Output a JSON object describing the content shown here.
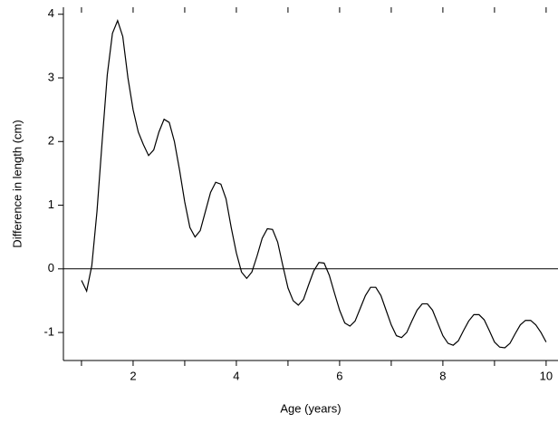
{
  "chart_data": {
    "type": "line",
    "xlabel": "Age (years)",
    "ylabel": "Difference in length (cm)",
    "xlim": [
      0.65,
      10.23
    ],
    "ylim": [
      -1.44,
      4.11
    ],
    "xticks": [
      2,
      4,
      6,
      8,
      10
    ],
    "xminor_ticks": [
      1,
      3,
      5,
      7,
      9
    ],
    "yticks": [
      -1,
      0,
      1,
      2,
      3,
      4
    ],
    "reference_line": 0,
    "x": [
      1.0,
      1.1,
      1.2,
      1.3,
      1.4,
      1.5,
      1.6,
      1.7,
      1.8,
      1.9,
      2.0,
      2.1,
      2.2,
      2.3,
      2.4,
      2.5,
      2.6,
      2.7,
      2.8,
      2.9,
      3.0,
      3.1,
      3.2,
      3.3,
      3.4,
      3.5,
      3.6,
      3.7,
      3.8,
      3.9,
      4.0,
      4.1,
      4.2,
      4.3,
      4.4,
      4.5,
      4.6,
      4.7,
      4.8,
      4.9,
      5.0,
      5.1,
      5.2,
      5.3,
      5.4,
      5.5,
      5.6,
      5.7,
      5.8,
      5.9,
      6.0,
      6.1,
      6.2,
      6.3,
      6.4,
      6.5,
      6.6,
      6.7,
      6.8,
      6.9,
      7.0,
      7.1,
      7.2,
      7.3,
      7.4,
      7.5,
      7.6,
      7.7,
      7.8,
      7.9,
      8.0,
      8.1,
      8.2,
      8.3,
      8.4,
      8.5,
      8.6,
      8.7,
      8.8,
      8.9,
      9.0,
      9.1,
      9.2,
      9.3,
      9.4,
      9.5,
      9.6,
      9.7,
      9.8,
      9.9,
      10.0
    ],
    "series": [
      {
        "color": "#000000",
        "values": [
          -0.18,
          -0.35,
          0.05,
          0.9,
          2.0,
          3.05,
          3.7,
          3.9,
          3.65,
          3.0,
          2.5,
          2.15,
          1.95,
          1.78,
          1.87,
          2.15,
          2.35,
          2.3,
          2.0,
          1.55,
          1.05,
          0.65,
          0.5,
          0.6,
          0.9,
          1.2,
          1.36,
          1.33,
          1.1,
          0.65,
          0.25,
          -0.05,
          -0.15,
          -0.05,
          0.2,
          0.48,
          0.63,
          0.62,
          0.42,
          0.05,
          -0.3,
          -0.5,
          -0.57,
          -0.48,
          -0.25,
          -0.03,
          0.1,
          0.09,
          -0.1,
          -0.38,
          -0.65,
          -0.85,
          -0.9,
          -0.82,
          -0.62,
          -0.42,
          -0.29,
          -0.29,
          -0.42,
          -0.65,
          -0.88,
          -1.05,
          -1.08,
          -1.0,
          -0.82,
          -0.65,
          -0.55,
          -0.55,
          -0.65,
          -0.85,
          -1.05,
          -1.17,
          -1.2,
          -1.13,
          -0.97,
          -0.82,
          -0.72,
          -0.72,
          -0.8,
          -0.97,
          -1.15,
          -1.23,
          -1.24,
          -1.17,
          -1.02,
          -0.88,
          -0.81,
          -0.81,
          -0.88,
          -1.0,
          -1.15
        ]
      }
    ]
  }
}
